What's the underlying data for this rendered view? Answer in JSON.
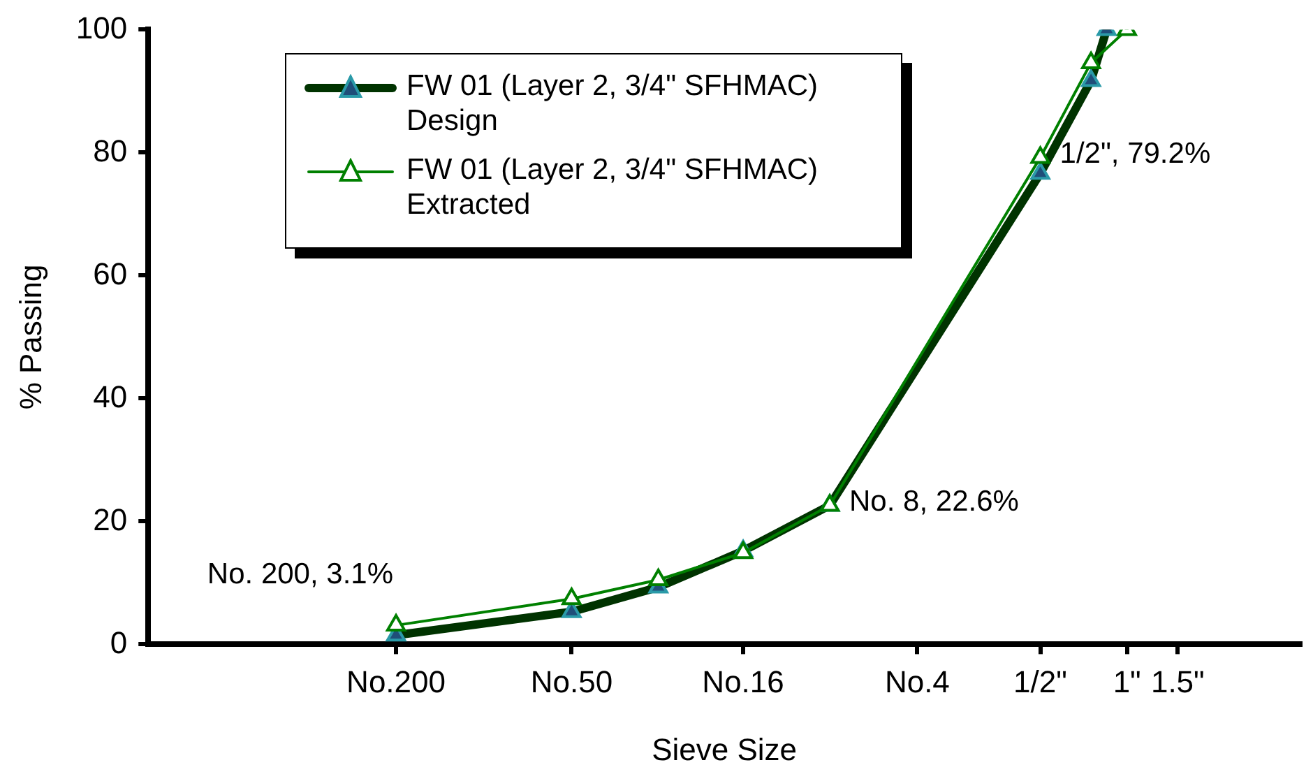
{
  "chart_data": {
    "type": "line",
    "xlabel": "Sieve Size",
    "ylabel": "% Passing",
    "log": "x",
    "xlim": [
      0.0004,
      4
    ],
    "xticks": [
      {
        "value": 0.0029,
        "label": "No.200"
      },
      {
        "value": 0.0118,
        "label": "No.50"
      },
      {
        "value": 0.0465,
        "label": "No.16"
      },
      {
        "value": 0.187,
        "label": "No.4"
      },
      {
        "value": 0.5,
        "label": "1/2\""
      },
      {
        "value": 1,
        "label": "1\""
      },
      {
        "value": 1.5,
        "label": "1.5\""
      }
    ],
    "ylim": [
      0,
      100
    ],
    "yticks": [
      0,
      20,
      40,
      60,
      80,
      100
    ],
    "grid": false,
    "legend": "top left",
    "marker": "triangle",
    "series": [
      {
        "name": "FW 01 (Layer 2, 3/4\" SFHMAC) Design",
        "color": "#003300",
        "x": [
          0.0029,
          0.0118,
          0.0236,
          0.0465,
          0.0929,
          0.5,
          0.75,
          0.85
        ],
        "values": [
          1.5,
          5.3,
          9.3,
          15.2,
          22.6,
          76.6,
          91.7,
          100
        ]
      },
      {
        "name": "FW 01 (Layer 2, 3/4\" SFHMAC) Extracted",
        "color": "#008000",
        "x": [
          0.0029,
          0.0118,
          0.0236,
          0.0465,
          0.0929,
          0.5,
          0.75,
          1
        ],
        "values": [
          3.1,
          7.4,
          10.5,
          14.9,
          22.6,
          79.2,
          94.6,
          100
        ]
      }
    ],
    "annotations": [
      {
        "text": "No. 200, 3.1%",
        "x": 0.0029,
        "y": 3.1
      },
      {
        "text": "No. 8, 22.6%",
        "x": 0.0929,
        "y": 22.6
      },
      {
        "text": "1/2\", 79.2%",
        "x": 0.5,
        "y": 79.2
      }
    ]
  }
}
